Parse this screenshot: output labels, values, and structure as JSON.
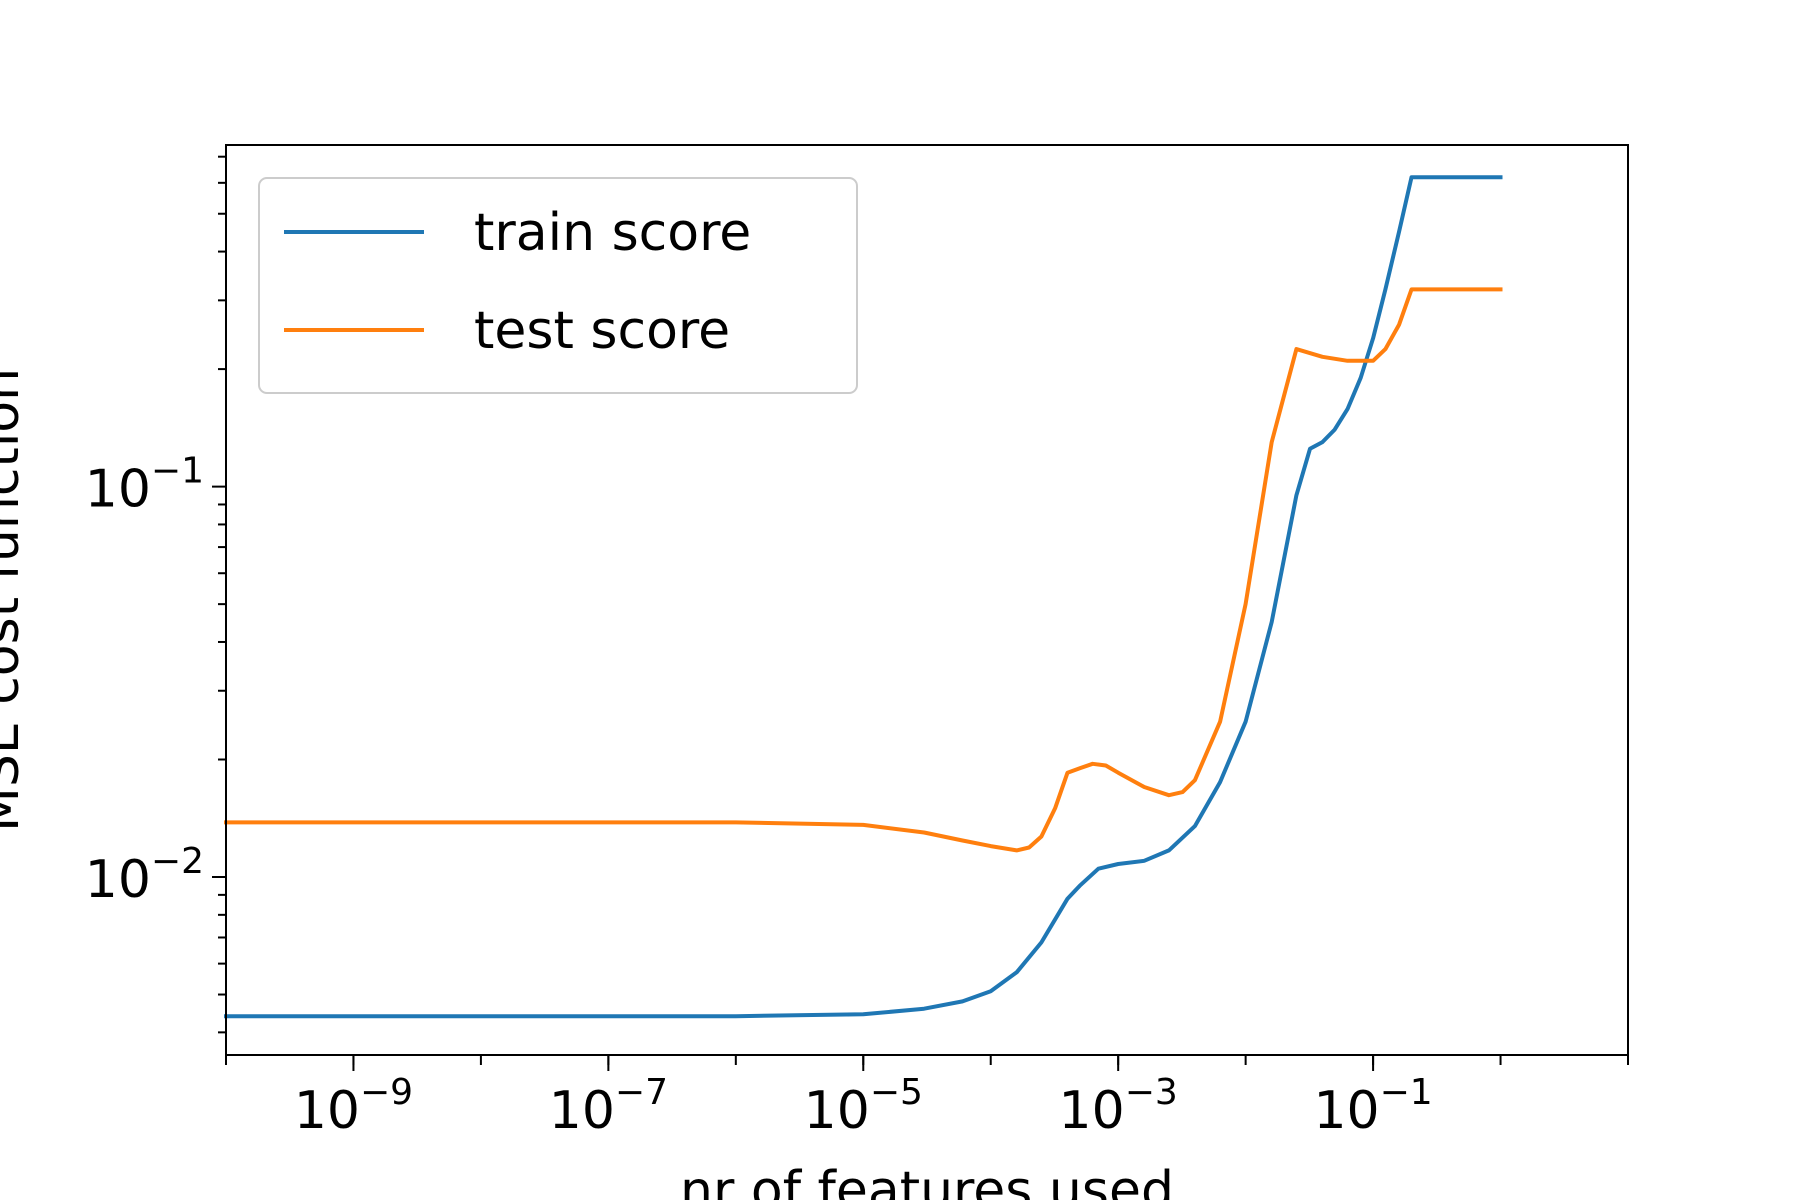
{
  "chart_data": {
    "type": "line",
    "title": "",
    "xlabel": "nr of features used",
    "ylabel": "MSE cost function",
    "xscale": "log",
    "yscale": "log",
    "xlim": [
      1e-10,
      10
    ],
    "ylim": [
      0.0035,
      0.75
    ],
    "grid": false,
    "legend_position": "top-left",
    "x_ticks": [
      {
        "value": 1e-09,
        "exponent": "−9"
      },
      {
        "value": 1e-07,
        "exponent": "−7"
      },
      {
        "value": 1e-05,
        "exponent": "−5"
      },
      {
        "value": 0.001,
        "exponent": "−3"
      },
      {
        "value": 0.1,
        "exponent": "−1"
      }
    ],
    "y_ticks": [
      {
        "value": 0.01,
        "exponent": "−2"
      },
      {
        "value": 0.1,
        "exponent": "−1"
      }
    ],
    "tick_base": "10",
    "series": [
      {
        "name": "train score",
        "color": "#1f77b4",
        "x": [
          1e-10,
          1e-08,
          1e-06,
          1e-05,
          3e-05,
          6e-05,
          0.0001,
          0.00016,
          0.00025,
          0.0004,
          0.0005,
          0.0007,
          0.001,
          0.0016,
          0.0025,
          0.004,
          0.0063,
          0.01,
          0.016,
          0.025,
          0.032,
          0.04,
          0.05,
          0.063,
          0.08,
          0.1,
          0.125,
          0.16,
          0.2,
          1
        ],
        "y": [
          0.0044,
          0.0044,
          0.0044,
          0.00445,
          0.0046,
          0.0048,
          0.0051,
          0.0057,
          0.0068,
          0.0088,
          0.0095,
          0.0105,
          0.0108,
          0.011,
          0.0117,
          0.0135,
          0.0175,
          0.025,
          0.045,
          0.095,
          0.125,
          0.13,
          0.14,
          0.158,
          0.19,
          0.24,
          0.32,
          0.45,
          0.62,
          0.62
        ]
      },
      {
        "name": "test score",
        "color": "#ff7f0e",
        "x": [
          1e-10,
          1e-08,
          1e-06,
          1e-05,
          3e-05,
          6e-05,
          0.0001,
          0.00016,
          0.0002,
          0.00025,
          0.00032,
          0.0004,
          0.0005,
          0.00063,
          0.0008,
          0.001,
          0.0016,
          0.0025,
          0.0032,
          0.004,
          0.0063,
          0.01,
          0.016,
          0.025,
          0.04,
          0.063,
          0.1,
          0.125,
          0.16,
          0.2,
          1
        ],
        "y": [
          0.0138,
          0.0138,
          0.0138,
          0.0136,
          0.013,
          0.0124,
          0.012,
          0.0117,
          0.0119,
          0.0127,
          0.015,
          0.0185,
          0.019,
          0.0195,
          0.0193,
          0.0185,
          0.017,
          0.0162,
          0.0165,
          0.0177,
          0.025,
          0.05,
          0.13,
          0.225,
          0.215,
          0.21,
          0.21,
          0.225,
          0.26,
          0.32,
          0.32
        ]
      }
    ]
  }
}
